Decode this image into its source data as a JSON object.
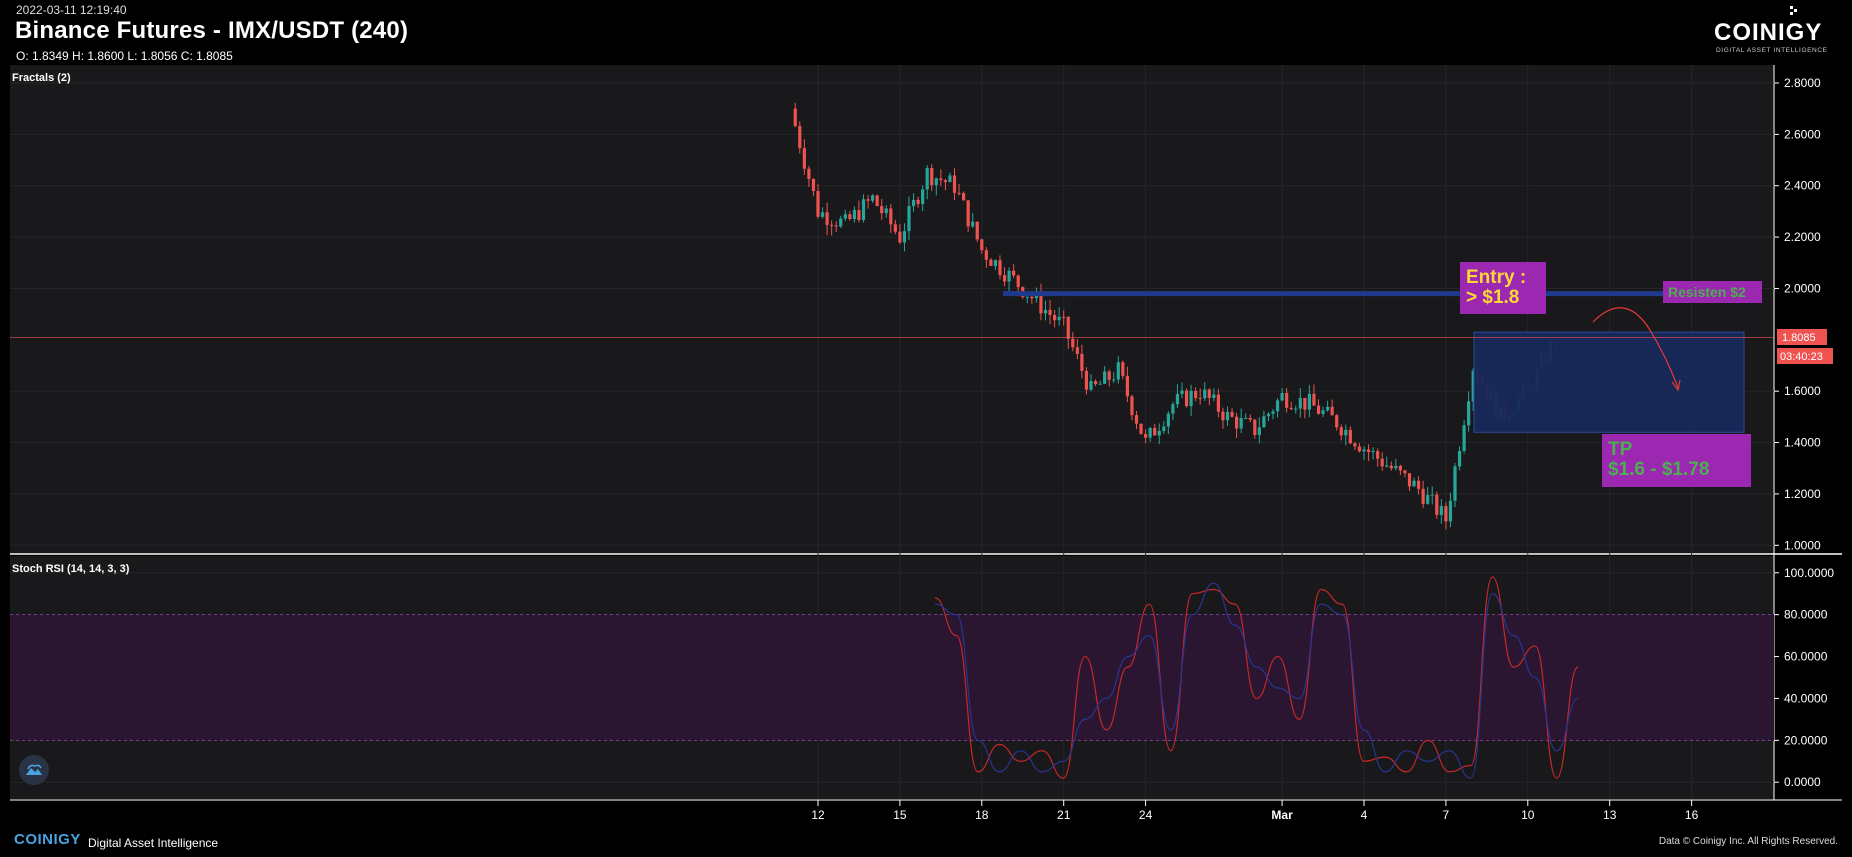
{
  "header": {
    "timestamp": "2022-03-11 12:19:40",
    "title": "Binance Futures - IMX/USDT (240)",
    "ohlc": "O: 1.8349 H: 1.8600 L: 1.8056 C: 1.8085",
    "logo_text": "COINIGY",
    "logo_tagline": "DIGITAL ASSET INTELLIGENCE"
  },
  "footer": {
    "brand": "COINIGY",
    "tagline": "Digital Asset Intelligence",
    "copyright": "Data © Coinigy Inc.  All Rights Reserved."
  },
  "colors": {
    "background": "#000000",
    "panel": "#19191b",
    "up": "#26a69a",
    "down": "#ef5350",
    "resistance": "#1e3a8a",
    "box": "#17285a",
    "annotation_bg": "#9c27b0",
    "entry_text": "#fdd835",
    "tp_text": "#4caf50",
    "rsi_band": "#2a1630"
  },
  "chart_data": [
    {
      "type": "candlestick",
      "indicator_label": "Fractals (2)",
      "x_ticks": [
        "12",
        "15",
        "18",
        "21",
        "24",
        "Mar",
        "4",
        "7",
        "10",
        "13",
        "16"
      ],
      "y_ticks": [
        "2.8000",
        "2.6000",
        "2.4000",
        "2.2000",
        "2.0000",
        "1.6000",
        "1.4000",
        "1.2000",
        "1.0000"
      ],
      "ylim": [
        0.97,
        2.87
      ],
      "last_price": "1.8085",
      "countdown": "03:40:23",
      "price_path_approx": [
        {
          "x": "2022-02-11",
          "y": 2.7
        },
        {
          "x": "2022-02-12",
          "y": 2.3
        },
        {
          "x": "2022-02-13",
          "y": 2.25
        },
        {
          "x": "2022-02-14",
          "y": 2.35
        },
        {
          "x": "2022-02-15",
          "y": 2.2
        },
        {
          "x": "2022-02-16",
          "y": 2.45
        },
        {
          "x": "2022-02-17",
          "y": 2.4
        },
        {
          "x": "2022-02-18",
          "y": 2.15
        },
        {
          "x": "2022-02-19",
          "y": 2.05
        },
        {
          "x": "2022-02-20",
          "y": 1.95
        },
        {
          "x": "2022-02-21",
          "y": 1.85
        },
        {
          "x": "2022-02-22",
          "y": 1.6
        },
        {
          "x": "2022-02-23",
          "y": 1.68
        },
        {
          "x": "2022-02-24",
          "y": 1.4
        },
        {
          "x": "2022-02-25",
          "y": 1.55
        },
        {
          "x": "2022-02-26",
          "y": 1.6
        },
        {
          "x": "2022-02-27",
          "y": 1.5
        },
        {
          "x": "2022-02-28",
          "y": 1.45
        },
        {
          "x": "2022-03-01",
          "y": 1.58
        },
        {
          "x": "2022-03-02",
          "y": 1.55
        },
        {
          "x": "2022-03-03",
          "y": 1.48
        },
        {
          "x": "2022-03-04",
          "y": 1.38
        },
        {
          "x": "2022-03-05",
          "y": 1.3
        },
        {
          "x": "2022-03-06",
          "y": 1.22
        },
        {
          "x": "2022-03-07",
          "y": 1.1
        },
        {
          "x": "2022-03-08",
          "y": 1.7
        },
        {
          "x": "2022-03-09",
          "y": 1.5
        },
        {
          "x": "2022-03-10",
          "y": 1.6
        },
        {
          "x": "2022-03-11",
          "y": 1.8
        }
      ],
      "annotations": {
        "resistance_label": "Resisten $2",
        "resistance_price": 1.98,
        "entry_line1": "Entry :",
        "entry_line2": "> $1.8",
        "tp_line1": "TP",
        "tp_line2": "$1.6 - $1.78",
        "box_high": 1.83,
        "box_low": 1.44
      }
    },
    {
      "type": "line",
      "indicator_label": "Stoch RSI (14, 14, 3, 3)",
      "y_ticks": [
        "100.0000",
        "80.0000",
        "60.0000",
        "40.0000",
        "20.0000",
        "0.0000"
      ],
      "ylim": [
        -8,
        108
      ],
      "band": [
        20,
        80
      ],
      "series": [
        {
          "values": [
            88,
            70,
            5,
            18,
            10,
            15,
            2,
            60,
            25,
            55,
            85,
            15,
            90,
            92,
            85,
            40,
            60,
            30,
            92,
            85,
            10,
            12,
            5,
            20,
            5,
            8,
            98,
            55,
            65,
            2,
            55
          ]
        },
        {
          "values": [
            85,
            80,
            20,
            5,
            15,
            5,
            10,
            30,
            40,
            60,
            70,
            25,
            80,
            95,
            75,
            55,
            45,
            40,
            85,
            80,
            25,
            5,
            15,
            10,
            15,
            2,
            90,
            70,
            50,
            15,
            40
          ]
        }
      ]
    }
  ]
}
